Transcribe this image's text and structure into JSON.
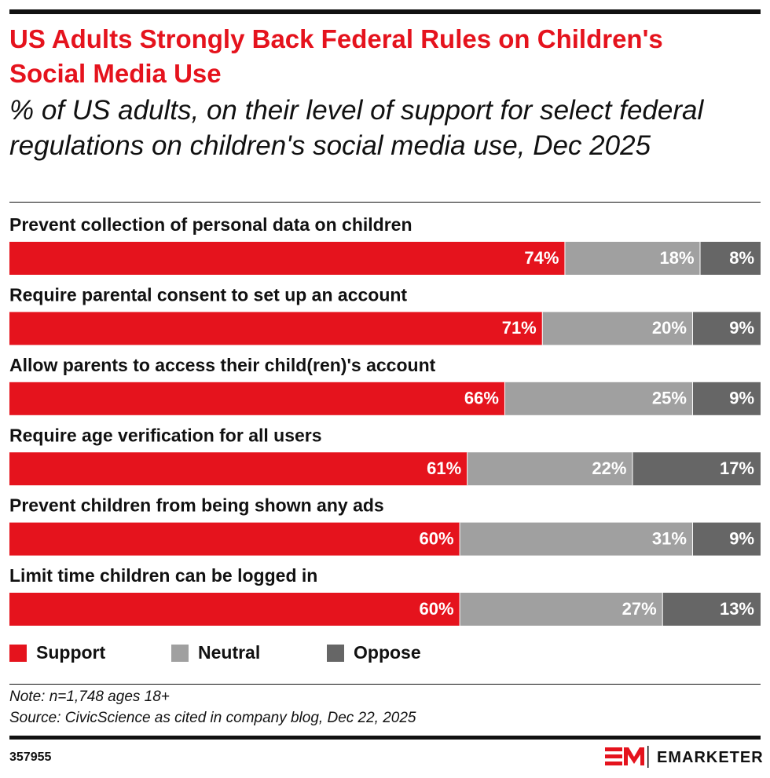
{
  "chart_data": {
    "type": "stacked-bar",
    "orientation": "horizontal",
    "title": "US Adults Strongly Back Federal Rules on Children's Social Media Use",
    "subtitle": "% of US adults, on their level of support for select federal regulations on children's social media use, Dec 2025",
    "categories": [
      "Prevent collection of personal data on children",
      "Require parental consent to set up an account",
      "Allow parents to access their child(ren)'s account",
      "Require age verification for all users",
      "Prevent children from being shown any ads",
      "Limit time children can be logged in"
    ],
    "series": [
      {
        "name": "Support",
        "color": "#e5131d",
        "values": [
          74,
          71,
          66,
          61,
          60,
          60
        ],
        "value_labels": [
          "74%",
          "71%",
          "66%",
          "61%",
          "60%",
          "60%"
        ]
      },
      {
        "name": "Neutral",
        "color": "#a0a0a0",
        "values": [
          18,
          20,
          25,
          22,
          31,
          27
        ],
        "value_labels": [
          "18%",
          "20%",
          "25%",
          "22%",
          "31%",
          "27%"
        ]
      },
      {
        "name": "Oppose",
        "color": "#666666",
        "values": [
          8,
          9,
          9,
          17,
          9,
          13
        ],
        "value_labels": [
          "8%",
          "9%",
          "9%",
          "17%",
          "9%",
          "13%"
        ]
      }
    ],
    "xlim": [
      0,
      100
    ],
    "note": "Note: n=1,748 ages 18+",
    "source": "Source: CivicScience as cited in company blog, Dec 22, 2025",
    "chart_id": "357955",
    "brand": "EMARKETER"
  }
}
